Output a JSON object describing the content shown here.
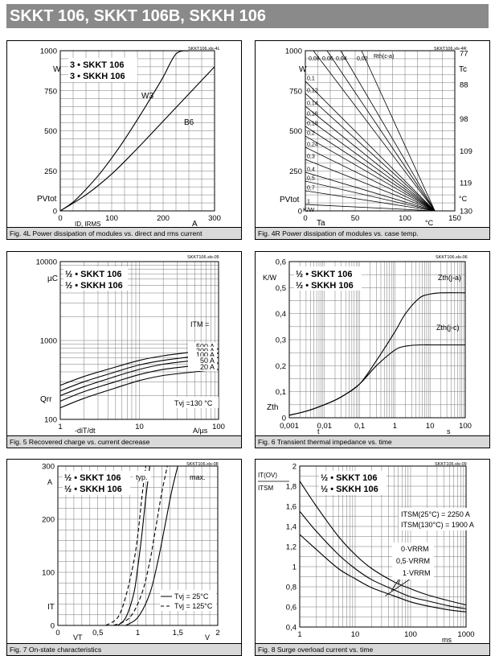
{
  "page_title": "SKKT 106, SKKT 106B, SKKH 106",
  "chart_data": [
    {
      "id": "fig4l",
      "type": "line",
      "caption": "Fig. 4L Power dissipation of modules vs. direct and rms current",
      "file_tag": "SKKT106.xls-4L",
      "legend": [
        "3 • SKKT 106",
        "3 • SKKH 106"
      ],
      "xlim": [
        0,
        300
      ],
      "ylim": [
        0,
        1000
      ],
      "xticks": [
        {
          "v": 0,
          "t": "0"
        },
        {
          "v": 100,
          "t": "100"
        },
        {
          "v": 200,
          "t": "200"
        },
        {
          "v": 300,
          "t": "300"
        }
      ],
      "yticks": [
        {
          "v": 0,
          "t": "0"
        },
        {
          "v": 250,
          "t": "250"
        },
        {
          "v": 500,
          "t": "500"
        },
        {
          "v": 750,
          "t": "750"
        },
        {
          "v": 1000,
          "t": "1000"
        }
      ],
      "y_unit": "W",
      "y_symbol": "PVtot",
      "x_symbol": "ID, IRMS",
      "x_unit": "A",
      "series": [
        {
          "name": "W3",
          "x": [
            0,
            25,
            50,
            75,
            100,
            125,
            150,
            175,
            200,
            225,
            250
          ],
          "y": [
            0,
            55,
            135,
            225,
            330,
            445,
            570,
            700,
            835,
            980,
            1000
          ]
        },
        {
          "name": "B6",
          "x": [
            0,
            50,
            100,
            150,
            200,
            250,
            300
          ],
          "y": [
            0,
            100,
            230,
            390,
            560,
            730,
            900
          ]
        }
      ]
    },
    {
      "id": "fig4r",
      "type": "line",
      "caption": "Fig. 4R Power dissipation of modules vs. case temp.",
      "file_tag": "SKKT106.xls-4R",
      "xlim": [
        0,
        150
      ],
      "ylim": [
        0,
        1000
      ],
      "xticks": [
        {
          "v": 0,
          "t": "0"
        },
        {
          "v": 50,
          "t": "50"
        },
        {
          "v": 100,
          "t": "100"
        },
        {
          "v": 150,
          "t": "150"
        }
      ],
      "yticks": [
        {
          "v": 0,
          "t": "0"
        },
        {
          "v": 250,
          "t": "250"
        },
        {
          "v": 500,
          "t": "500"
        },
        {
          "v": 750,
          "t": "750"
        },
        {
          "v": 1000,
          "t": "1000"
        }
      ],
      "right_ticks": [
        {
          "v": 0,
          "t": "130"
        },
        {
          "v": 175,
          "t": "119"
        },
        {
          "v": 375,
          "t": "109"
        },
        {
          "v": 575,
          "t": "98"
        },
        {
          "v": 790,
          "t": "88"
        },
        {
          "v": 985,
          "t": "77"
        }
      ],
      "y_unit": "W",
      "y_symbol": "PVtot",
      "x_symbol": "Ta",
      "x_unit": "°C",
      "right_symbol": "Tc",
      "right_unit": "°C",
      "rth_label": "Rth(c-a)",
      "rth_unit": "K/W",
      "rth_values_top": [
        "0,08",
        "0,06",
        "0,04",
        "0,02"
      ],
      "rth_values_left": [
        "0,1",
        "0,12",
        "0,14",
        "0,16",
        "0,18",
        "0,2",
        "0,24",
        "0,3",
        "0,4",
        "0,5",
        "0,7",
        "1"
      ],
      "pivot_x": 130
    },
    {
      "id": "fig5",
      "type": "line",
      "caption": "Fig. 5 Recovered charge vs. current decrease",
      "file_tag": "SKKT106.xls-05",
      "legend": [
        "½ • SKKT 106",
        "½ • SKKH 106"
      ],
      "xscale": "log",
      "yscale": "log",
      "xlim": [
        1,
        100
      ],
      "ylim": [
        100,
        10000
      ],
      "xticks": [
        {
          "v": 1,
          "t": "1"
        },
        {
          "v": 10,
          "t": "10"
        },
        {
          "v": 100,
          "t": "100"
        }
      ],
      "yticks": [
        {
          "v": 100,
          "t": "100"
        },
        {
          "v": 1000,
          "t": "1000"
        },
        {
          "v": 10000,
          "t": "10000"
        }
      ],
      "y_unit": "µC",
      "y_symbol": "Qrr",
      "x_symbol": "-diT/dt",
      "x_unit": "A/µs",
      "param_label": "ITM =",
      "condition": "Tvj =130 °C",
      "x": [
        1,
        2,
        5,
        10,
        20,
        50,
        100
      ],
      "series": [
        {
          "name": "500 A",
          "y": [
            270,
            350,
            460,
            560,
            640,
            720,
            780
          ]
        },
        {
          "name": "200 A",
          "y": [
            230,
            300,
            400,
            490,
            560,
            630,
            690
          ]
        },
        {
          "name": "100 A",
          "y": [
            200,
            260,
            350,
            430,
            500,
            560,
            610
          ]
        },
        {
          "name": "50 A",
          "y": [
            170,
            225,
            300,
            370,
            430,
            480,
            520
          ]
        },
        {
          "name": "20 A",
          "y": [
            140,
            185,
            250,
            310,
            360,
            400,
            430
          ]
        }
      ]
    },
    {
      "id": "fig6",
      "type": "line",
      "caption": "Fig. 6 Transient thermal impedance vs. time",
      "file_tag": "SKKT106.xls-06",
      "legend": [
        "½ • SKKT 106",
        "½ • SKKH 106"
      ],
      "xscale": "log",
      "xlim": [
        0.001,
        100
      ],
      "ylim": [
        0,
        0.6
      ],
      "xticks": [
        {
          "v": 0.001,
          "t": "0,001"
        },
        {
          "v": 0.01,
          "t": "0,01"
        },
        {
          "v": 0.1,
          "t": "0,1"
        },
        {
          "v": 1,
          "t": "1"
        },
        {
          "v": 10,
          "t": "10"
        },
        {
          "v": 100,
          "t": "100"
        }
      ],
      "yticks": [
        {
          "v": 0,
          "t": "0"
        },
        {
          "v": 0.1,
          "t": "0,1"
        },
        {
          "v": 0.2,
          "t": "0,2"
        },
        {
          "v": 0.3,
          "t": "0,3"
        },
        {
          "v": 0.4,
          "t": "0,4"
        },
        {
          "v": 0.5,
          "t": "0,5"
        },
        {
          "v": 0.6,
          "t": "0,6"
        }
      ],
      "y_unit": "K/W",
      "y_symbol": "Zth",
      "x_symbol": "t",
      "x_unit": "s",
      "series": [
        {
          "name": "Zth(j-a)",
          "x": [
            0.001,
            0.003,
            0.01,
            0.03,
            0.1,
            0.3,
            1,
            2,
            5,
            10,
            20,
            100
          ],
          "y": [
            0.01,
            0.025,
            0.05,
            0.08,
            0.13,
            0.22,
            0.33,
            0.4,
            0.46,
            0.475,
            0.48,
            0.48
          ]
        },
        {
          "name": "Zth(j-c)",
          "x": [
            0.001,
            0.003,
            0.01,
            0.03,
            0.1,
            0.3,
            1,
            2,
            5,
            10,
            20,
            100
          ],
          "y": [
            0.01,
            0.025,
            0.05,
            0.08,
            0.13,
            0.2,
            0.26,
            0.275,
            0.28,
            0.28,
            0.28,
            0.28
          ]
        }
      ]
    },
    {
      "id": "fig7",
      "type": "line",
      "caption": "Fig. 7 On-state characteristics",
      "file_tag": "SKKT106.xls-08",
      "legend": [
        "½ • SKKT 106",
        "½ • SKKH 106"
      ],
      "xlim": [
        0,
        2
      ],
      "ylim": [
        0,
        300
      ],
      "xticks": [
        {
          "v": 0,
          "t": "0"
        },
        {
          "v": 0.5,
          "t": "0,5"
        },
        {
          "v": 1,
          "t": "1"
        },
        {
          "v": 1.5,
          "t": "1,5"
        },
        {
          "v": 2,
          "t": "2"
        }
      ],
      "yticks": [
        {
          "v": 0,
          "t": "0"
        },
        {
          "v": 100,
          "t": "100"
        },
        {
          "v": 200,
          "t": "200"
        },
        {
          "v": 300,
          "t": "300"
        }
      ],
      "y_unit": "A",
      "y_symbol": "IT",
      "x_symbol": "VT",
      "x_unit": "V",
      "typ_label": "typ.",
      "max_label": "max.",
      "legend_temps": [
        "Tvj = 25°C",
        "Tvj = 125°C"
      ],
      "series": [
        {
          "name": "typ 25°C",
          "style": "solid",
          "x": [
            0.75,
            0.85,
            0.95,
            1.0,
            1.05,
            1.1,
            1.15
          ],
          "y": [
            0,
            15,
            60,
            110,
            170,
            240,
            300
          ]
        },
        {
          "name": "typ 125°C",
          "style": "dashed",
          "x": [
            0.6,
            0.75,
            0.85,
            0.95,
            1.0,
            1.05,
            1.1
          ],
          "y": [
            0,
            15,
            55,
            120,
            170,
            240,
            300
          ]
        },
        {
          "name": "max 25°C",
          "style": "solid",
          "x": [
            0.85,
            1.0,
            1.15,
            1.25,
            1.33,
            1.42,
            1.5
          ],
          "y": [
            0,
            15,
            60,
            120,
            180,
            250,
            300
          ]
        },
        {
          "name": "max 125°C",
          "style": "dashed",
          "x": [
            0.7,
            0.9,
            1.05,
            1.15,
            1.22,
            1.3,
            1.37
          ],
          "y": [
            0,
            15,
            60,
            120,
            180,
            250,
            300
          ]
        }
      ]
    },
    {
      "id": "fig8",
      "type": "line",
      "caption": "Fig. 8 Surge overload current vs. time",
      "file_tag": "SKKT106.xls-09",
      "legend": [
        "½ • SKKT 106",
        "½ • SKKH 106"
      ],
      "xscale": "log",
      "xlim": [
        1,
        1000
      ],
      "ylim": [
        0.4,
        2
      ],
      "xticks": [
        {
          "v": 1,
          "t": "1"
        },
        {
          "v": 10,
          "t": "10"
        },
        {
          "v": 100,
          "t": "100"
        },
        {
          "v": 1000,
          "t": "1000"
        }
      ],
      "yticks": [
        {
          "v": 0.4,
          "t": "0,4"
        },
        {
          "v": 0.6,
          "t": "0,6"
        },
        {
          "v": 0.8,
          "t": "0,8"
        },
        {
          "v": 1,
          "t": "1"
        },
        {
          "v": 1.2,
          "t": "1,2"
        },
        {
          "v": 1.4,
          "t": "1,4"
        },
        {
          "v": 1.6,
          "t": "1,6"
        },
        {
          "v": 1.8,
          "t": "1,8"
        },
        {
          "v": 2,
          "t": "2"
        }
      ],
      "y_label_num": "IT(OV)",
      "y_label_den": "ITSM",
      "x_unit": "ms",
      "notes": [
        "ITSM(25°C) = 2250 A",
        "ITSM(130°C) = 1900 A"
      ],
      "series": [
        {
          "name": "0·VRRM",
          "x": [
            1,
            2,
            5,
            10,
            20,
            50,
            100,
            200,
            500,
            1000
          ],
          "y": [
            1.85,
            1.6,
            1.3,
            1.12,
            0.98,
            0.85,
            0.78,
            0.72,
            0.66,
            0.62
          ]
        },
        {
          "name": "0,5·VRRM",
          "x": [
            1,
            2,
            5,
            10,
            20,
            50,
            100,
            200,
            500,
            1000
          ],
          "y": [
            1.55,
            1.35,
            1.12,
            0.98,
            0.87,
            0.77,
            0.7,
            0.66,
            0.61,
            0.58
          ]
        },
        {
          "name": "1·VRRM",
          "x": [
            1,
            2,
            5,
            10,
            20,
            50,
            100,
            200,
            500,
            1000
          ],
          "y": [
            1.32,
            1.17,
            0.98,
            0.88,
            0.79,
            0.71,
            0.65,
            0.61,
            0.57,
            0.55
          ]
        }
      ]
    }
  ]
}
